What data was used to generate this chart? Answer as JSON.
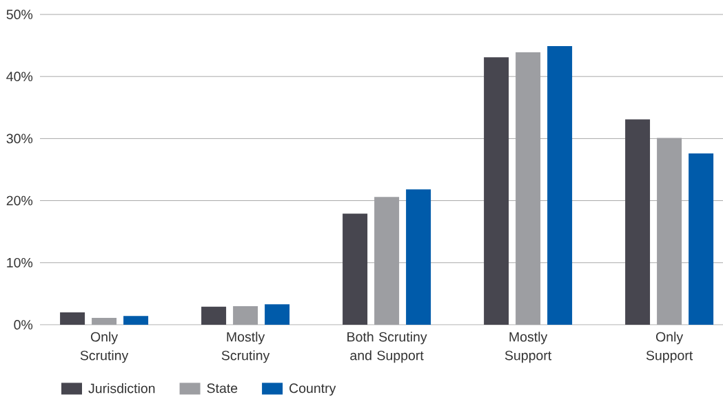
{
  "chart_data": {
    "type": "bar",
    "categories": [
      "Only\nScrutiny",
      "Mostly\nScrutiny",
      "Both Scrutiny\nand Support",
      "Mostly\nSupport",
      "Only\nSupport"
    ],
    "series": [
      {
        "name": "Jurisdiction",
        "color": "#47464f",
        "values": [
          2.0,
          2.9,
          17.9,
          43.1,
          33.1
        ]
      },
      {
        "name": "State",
        "color": "#9d9ea2",
        "values": [
          1.1,
          3.0,
          20.6,
          43.9,
          30.1
        ]
      },
      {
        "name": "Country",
        "color": "#005baa",
        "values": [
          1.4,
          3.3,
          21.8,
          44.9,
          27.6
        ]
      }
    ],
    "ylim": [
      0,
      50
    ],
    "yticks": [
      {
        "value": 0,
        "label": "0%"
      },
      {
        "value": 10,
        "label": "10%"
      },
      {
        "value": 20,
        "label": "20%"
      },
      {
        "value": 30,
        "label": "30%"
      },
      {
        "value": 40,
        "label": "40%"
      },
      {
        "value": 50,
        "label": "50%"
      }
    ],
    "grid": "y",
    "legend": "bottom left"
  }
}
